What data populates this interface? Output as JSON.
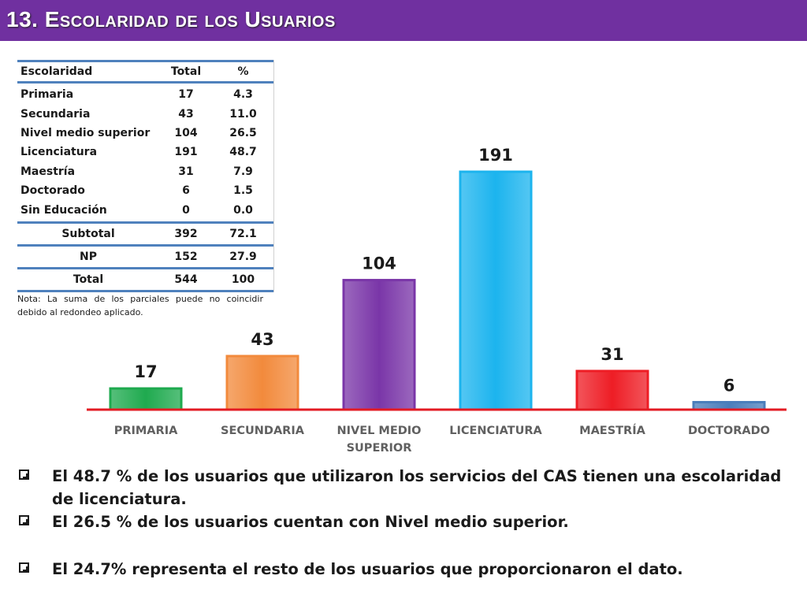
{
  "title": "13. Escolaridad de los Usuarios",
  "table": {
    "headers": [
      "Escolaridad",
      "Total",
      "%"
    ],
    "rows": [
      [
        "Primaria",
        "17",
        "4.3"
      ],
      [
        "Secundaria",
        "43",
        "11.0"
      ],
      [
        "Nivel medio superior",
        "104",
        "26.5"
      ],
      [
        "Licenciatura",
        "191",
        "48.7"
      ],
      [
        "Maestría",
        "31",
        "7.9"
      ],
      [
        "Doctorado",
        "6",
        "1.5"
      ],
      [
        "Sin Educación",
        "0",
        "0.0"
      ]
    ],
    "subtotal": [
      "Subtotal",
      "392",
      "72.1"
    ],
    "np": [
      "NP",
      "152",
      "27.9"
    ],
    "total": [
      "Total",
      "544",
      "100"
    ]
  },
  "note": "Nota: La suma de los parciales puede no coincidir debido al redondeo aplicado.",
  "chart_data": {
    "type": "bar",
    "categories": [
      "PRIMARIA",
      "SECUNDARIA",
      "NIVEL MEDIO SUPERIOR",
      "LICENCIATURA",
      "MAESTRÍA",
      "DOCTORADO"
    ],
    "category_lines": [
      [
        "PRIMARIA"
      ],
      [
        "SECUNDARIA"
      ],
      [
        "NIVEL MEDIO",
        "SUPERIOR"
      ],
      [
        "LICENCIATURA"
      ],
      [
        "MAESTRÍA"
      ],
      [
        "DOCTORADO"
      ]
    ],
    "values": [
      17,
      43,
      104,
      191,
      31,
      6
    ],
    "colors": [
      "#1faa4f",
      "#f28a3c",
      "#7a36a8",
      "#1cb4ee",
      "#ee1d25",
      "#4a7ebb"
    ],
    "axis_color": "#e31b23",
    "ylim": [
      0,
      191
    ],
    "data_labels": true,
    "grid": false,
    "legend": "none"
  },
  "bullets": [
    "El 48.7 % de los usuarios que utilizaron los servicios del CAS tienen una escolaridad de licenciatura.",
    "El 26.5 % de los usuarios cuentan con Nivel medio superior.",
    "El  24.7% representa el resto de los usuarios que proporcionaron el dato."
  ]
}
